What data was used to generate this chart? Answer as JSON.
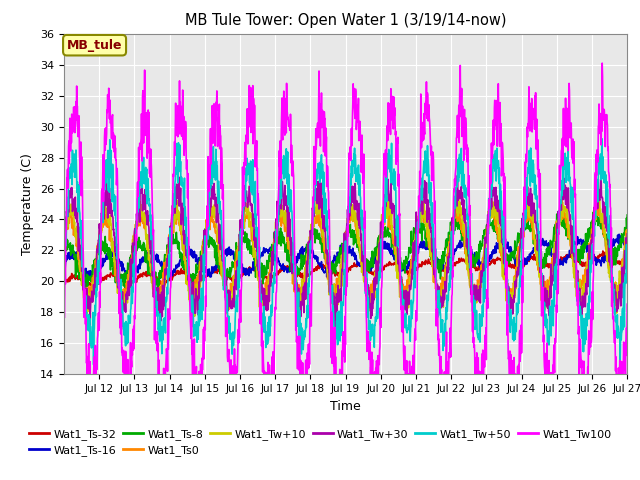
{
  "title": "MB Tule Tower: Open Water 1 (3/19/14-now)",
  "xlabel": "Time",
  "ylabel": "Temperature (C)",
  "ylim": [
    14,
    36
  ],
  "yticks": [
    14,
    16,
    18,
    20,
    22,
    24,
    26,
    28,
    30,
    32,
    34,
    36
  ],
  "xtick_labels": [
    "Jul 12",
    "Jul 13",
    "Jul 14",
    "Jul 15",
    "Jul 16",
    "Jul 17",
    "Jul 18",
    "Jul 19",
    "Jul 20",
    "Jul 21",
    "Jul 22",
    "Jul 23",
    "Jul 24",
    "Jul 25",
    "Jul 26",
    "Jul 27"
  ],
  "series": [
    {
      "name": "Wat1_Ts-32",
      "color": "#cc0000",
      "lw": 1.2
    },
    {
      "name": "Wat1_Ts-16",
      "color": "#0000cc",
      "lw": 1.2
    },
    {
      "name": "Wat1_Ts-8",
      "color": "#00aa00",
      "lw": 1.2
    },
    {
      "name": "Wat1_Ts0",
      "color": "#ff8800",
      "lw": 1.2
    },
    {
      "name": "Wat1_Tw+10",
      "color": "#cccc00",
      "lw": 1.2
    },
    {
      "name": "Wat1_Tw+30",
      "color": "#aa00aa",
      "lw": 1.2
    },
    {
      "name": "Wat1_Tw+50",
      "color": "#00cccc",
      "lw": 1.2
    },
    {
      "name": "Wat1_Tw100",
      "color": "#ff00ff",
      "lw": 1.2
    }
  ],
  "legend_label": "MB_tule",
  "legend_label_color": "#880000",
  "legend_box_facecolor": "#ffffaa",
  "legend_box_edge": "#888800",
  "plot_bg": "#e8e8e8",
  "fig_bg": "#ffffff",
  "grid_color": "#ffffff"
}
